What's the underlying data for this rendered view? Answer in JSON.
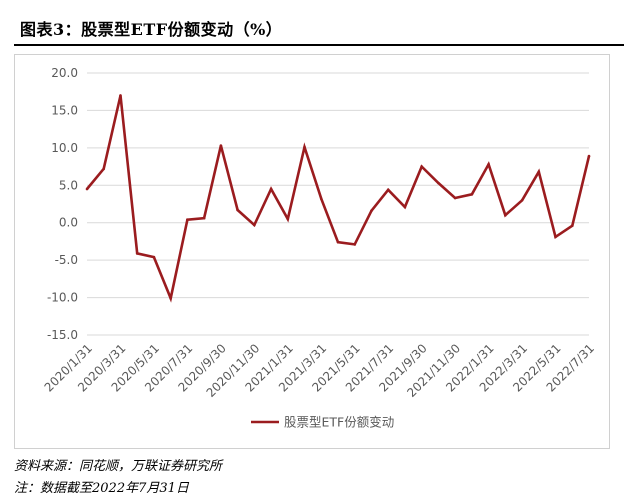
{
  "header": {
    "title": "图表3：股票型ETF份额变动（%）"
  },
  "chart_data": {
    "type": "line",
    "x": [
      "2020/1/31",
      "2020/2/29",
      "2020/3/31",
      "2020/4/30",
      "2020/5/31",
      "2020/6/30",
      "2020/7/31",
      "2020/8/31",
      "2020/9/30",
      "2020/10/31",
      "2020/11/30",
      "2020/12/31",
      "2021/1/31",
      "2021/2/28",
      "2021/3/31",
      "2021/4/30",
      "2021/5/31",
      "2021/6/30",
      "2021/7/31",
      "2021/8/31",
      "2021/9/30",
      "2021/10/31",
      "2021/11/30",
      "2021/12/31",
      "2022/1/31",
      "2022/2/28",
      "2022/3/31",
      "2022/4/30",
      "2022/5/31",
      "2022/6/30",
      "2022/7/31"
    ],
    "x_tick_labels": [
      "2020/1/31",
      "2020/3/31",
      "2020/5/31",
      "2020/7/31",
      "2020/9/30",
      "2020/11/30",
      "2021/1/31",
      "2021/3/31",
      "2021/5/31",
      "2021/7/31",
      "2021/9/30",
      "2021/11/30",
      "2022/1/31",
      "2022/3/31",
      "2022/5/31",
      "2022/7/31"
    ],
    "series": [
      {
        "name": "股票型ETF份额变动",
        "values": [
          4.5,
          7.2,
          17.0,
          -4.1,
          -4.6,
          -10.1,
          0.4,
          0.6,
          10.3,
          1.7,
          -0.3,
          4.5,
          0.5,
          10.1,
          3.2,
          -2.6,
          -2.9,
          1.6,
          4.4,
          2.1,
          7.5,
          5.3,
          3.3,
          3.8,
          7.8,
          1.0,
          3.0,
          6.8,
          -1.9,
          -0.4,
          8.9
        ]
      }
    ],
    "ylim": [
      -15,
      20
    ],
    "y_tick_labels": [
      "20.0",
      "15.0",
      "10.0",
      "5.0",
      "0.0",
      "-5.0",
      "-10.0",
      "-15.0"
    ],
    "grid": true,
    "legend_position": "bottom",
    "colors": {
      "series": "#9b1c1f",
      "grid": "#d9d9d9",
      "axis_text": "#595959"
    }
  },
  "footer": {
    "source": "资料来源：同花顺，万联证券研究所",
    "note": "注：数据截至2022年7月31日"
  }
}
